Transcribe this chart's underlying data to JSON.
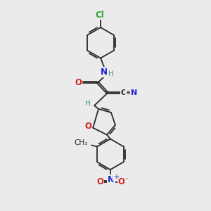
{
  "background_color": "#ebebeb",
  "bond_color": "#2a2a2a",
  "atom_colors": {
    "Cl": "#2ca02c",
    "N": "#2020d0",
    "O": "#d62020",
    "H": "#4a9090",
    "CN_C": "#2a2a2a",
    "CN_N": "#2020d0",
    "methyl": "#2a2a2a"
  },
  "figsize": [
    3.0,
    3.0
  ],
  "dpi": 100
}
